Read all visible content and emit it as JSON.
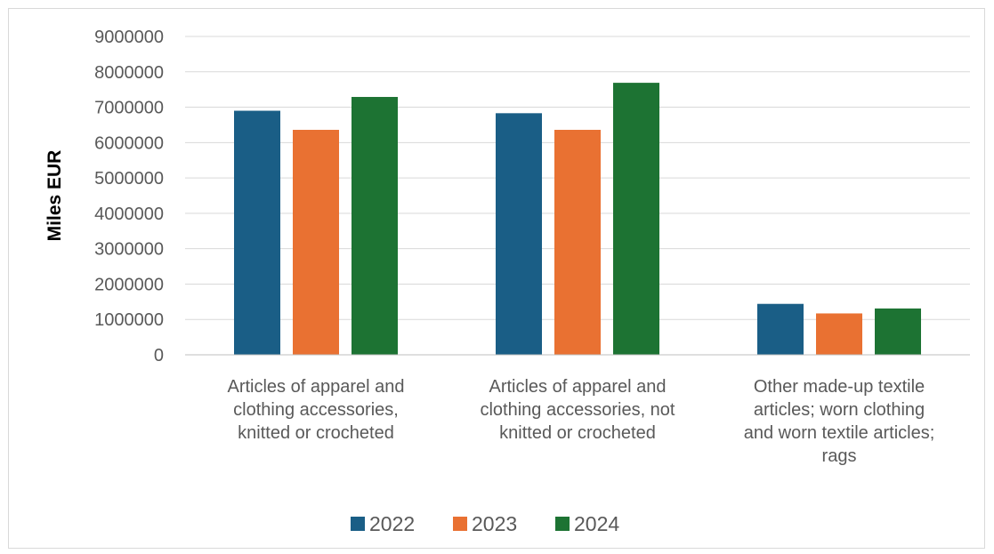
{
  "chart_data": {
    "type": "bar",
    "title": "",
    "xlabel": "",
    "ylabel": "Miles EUR",
    "ylim": [
      0,
      9000000
    ],
    "yticks": [
      0,
      1000000,
      2000000,
      3000000,
      4000000,
      5000000,
      6000000,
      7000000,
      8000000,
      9000000
    ],
    "grid": true,
    "legend_position": "bottom",
    "categories": [
      [
        "Articles of apparel and",
        "clothing accessories,",
        "knitted or crocheted"
      ],
      [
        "Articles of apparel and",
        "clothing accessories, not",
        "knitted or crocheted"
      ],
      [
        "Other made-up textile",
        "articles; worn clothing",
        "and worn textile articles;",
        "rags"
      ]
    ],
    "series": [
      {
        "name": "2022",
        "color": "#1a5e86",
        "values": [
          6900000,
          6830000,
          1440000
        ]
      },
      {
        "name": "2023",
        "color": "#e97132",
        "values": [
          6360000,
          6360000,
          1170000
        ]
      },
      {
        "name": "2024",
        "color": "#1d7333",
        "values": [
          7290000,
          7690000,
          1310000
        ]
      }
    ]
  }
}
